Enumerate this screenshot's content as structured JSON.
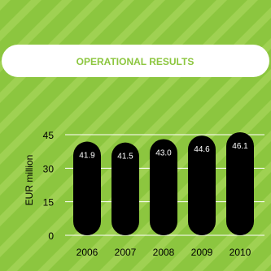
{
  "colors": {
    "background": "#8cc63f",
    "stripe": "#9fd152",
    "title_box": "#ffffff",
    "title_text": "#8cc63f",
    "bar": "#000000",
    "bar_label": "#ffffff",
    "gridline": "#ffffff",
    "tick_text": "#000000"
  },
  "chart_data": {
    "type": "bar",
    "title": "OPERATIONAL RESULTS",
    "ylabel": "EUR million",
    "xlabel": "",
    "categories": [
      "2006",
      "2007",
      "2008",
      "2009",
      "2010"
    ],
    "values": [
      41.9,
      41.5,
      43.0,
      44.6,
      46.1
    ],
    "data_labels": [
      "41.9",
      "41.5",
      "43.0",
      "44.6",
      "46.1"
    ],
    "ylim": [
      0,
      45
    ],
    "yticks": [
      0,
      15,
      30,
      45
    ],
    "grid": true,
    "legend": "none"
  }
}
